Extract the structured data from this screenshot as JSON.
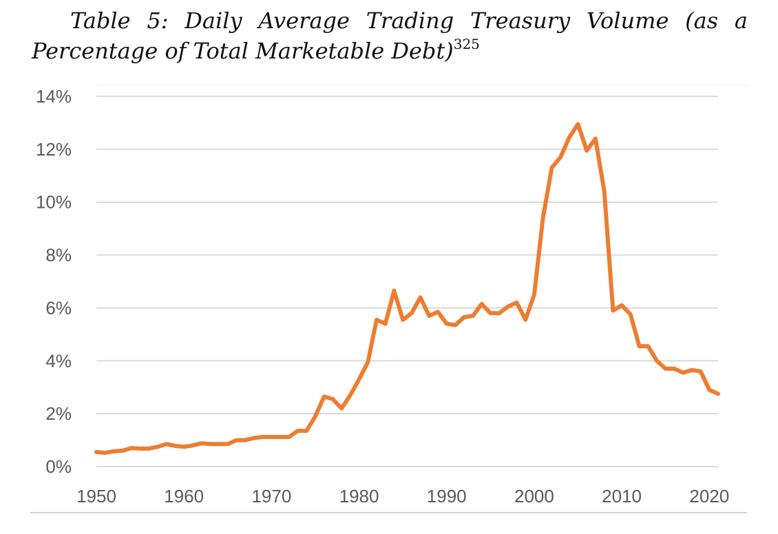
{
  "title": {
    "main": "Table 5: Daily Average Trading Treasury Volume (as a",
    "main_line2": "Percentage of Total Marketable Debt)",
    "footnote": "325"
  },
  "chart_data": {
    "type": "line",
    "title": "",
    "xlabel": "",
    "ylabel": "",
    "xlim": [
      1950,
      2021
    ],
    "ylim": [
      0,
      14
    ],
    "grid": "horizontal",
    "y_ticks": [
      "0%",
      "2%",
      "4%",
      "6%",
      "8%",
      "10%",
      "12%",
      "14%"
    ],
    "x_ticks": [
      "1950",
      "1960",
      "1970",
      "1980",
      "1990",
      "2000",
      "2010",
      "2020"
    ],
    "series": [
      {
        "color": "#ed7d31",
        "x": [
          1950,
          1951,
          1952,
          1953,
          1954,
          1955,
          1956,
          1957,
          1958,
          1959,
          1960,
          1961,
          1962,
          1963,
          1964,
          1965,
          1966,
          1967,
          1968,
          1969,
          1970,
          1971,
          1972,
          1973,
          1974,
          1975,
          1976,
          1977,
          1978,
          1979,
          1980,
          1981,
          1982,
          1983,
          1984,
          1985,
          1986,
          1987,
          1988,
          1989,
          1990,
          1991,
          1992,
          1993,
          1994,
          1995,
          1996,
          1997,
          1998,
          1999,
          2000,
          2001,
          2002,
          2003,
          2004,
          2005,
          2006,
          2007,
          2008,
          2009,
          2010,
          2011,
          2012,
          2013,
          2014,
          2015,
          2016,
          2017,
          2018,
          2019,
          2020,
          2021
        ],
        "y": [
          0.55,
          0.52,
          0.58,
          0.6,
          0.7,
          0.68,
          0.68,
          0.75,
          0.85,
          0.78,
          0.75,
          0.8,
          0.88,
          0.85,
          0.85,
          0.85,
          1.0,
          1.0,
          1.08,
          1.12,
          1.12,
          1.12,
          1.12,
          1.35,
          1.35,
          1.9,
          2.65,
          2.55,
          2.2,
          2.7,
          3.3,
          3.95,
          5.55,
          5.4,
          6.65,
          5.55,
          5.8,
          6.4,
          5.7,
          5.85,
          5.4,
          5.35,
          5.65,
          5.7,
          6.15,
          5.8,
          5.8,
          6.05,
          6.2,
          5.55,
          6.5,
          9.4,
          11.3,
          11.7,
          12.45,
          12.95,
          11.95,
          12.4,
          10.4,
          5.9,
          6.1,
          5.75,
          4.55,
          4.55,
          4.0,
          3.7,
          3.7,
          3.55,
          3.65,
          3.6,
          2.9,
          2.75
        ]
      }
    ]
  }
}
